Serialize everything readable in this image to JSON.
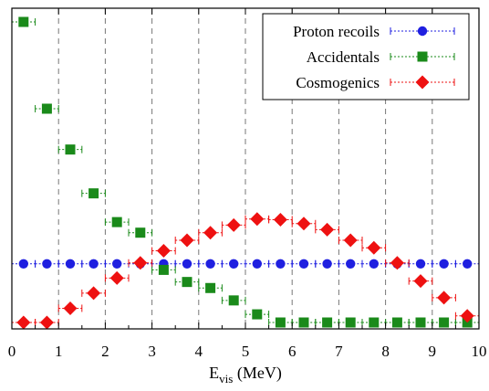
{
  "chart_data": {
    "type": "scatter",
    "xlabel": "E",
    "xlabel_sub": "vis",
    "xlabel_unit": " (MeV)",
    "ylabel": "",
    "xlim": [
      0,
      10
    ],
    "ylim": [
      0,
      1
    ],
    "grid": "vertical dashed",
    "legend_position": "top-right",
    "x_ticks": [
      "0",
      "1",
      "2",
      "3",
      "4",
      "5",
      "6",
      "7",
      "8",
      "9",
      "10"
    ],
    "series": [
      {
        "name": "Proton recoils",
        "marker": "circle",
        "color": "#1f1fe0",
        "x": [
          0.25,
          0.75,
          1.25,
          1.75,
          2.25,
          2.75,
          3.25,
          3.75,
          4.25,
          4.75,
          5.25,
          5.75,
          6.25,
          6.75,
          7.25,
          7.75,
          8.25,
          8.75,
          9.25,
          9.75
        ],
        "y": [
          0.197,
          0.197,
          0.197,
          0.197,
          0.197,
          0.197,
          0.197,
          0.197,
          0.197,
          0.197,
          0.197,
          0.197,
          0.197,
          0.197,
          0.197,
          0.197,
          0.197,
          0.197,
          0.197,
          0.197
        ]
      },
      {
        "name": "Accidentals",
        "marker": "square",
        "color": "#1a8a1a",
        "x": [
          0.25,
          0.75,
          1.25,
          1.75,
          2.25,
          2.75,
          3.25,
          3.75,
          4.25,
          4.75,
          5.25,
          5.75,
          6.25,
          6.75,
          7.25,
          7.75,
          8.25,
          8.75,
          9.25,
          9.75
        ],
        "y": [
          0.997,
          0.71,
          0.575,
          0.43,
          0.335,
          0.3,
          0.177,
          0.137,
          0.117,
          0.076,
          0.03,
          0.003,
          0.003,
          0.003,
          0.003,
          0.003,
          0.003,
          0.003,
          0.003,
          0.003
        ]
      },
      {
        "name": "Cosmogenics",
        "marker": "diamond",
        "color": "#ee1111",
        "x": [
          0.25,
          0.75,
          1.25,
          1.75,
          2.25,
          2.75,
          3.25,
          3.75,
          4.25,
          4.75,
          5.25,
          5.75,
          6.25,
          6.75,
          7.25,
          7.75,
          8.25,
          8.75,
          9.25,
          9.75
        ],
        "y": [
          0.003,
          0.003,
          0.05,
          0.1,
          0.15,
          0.2,
          0.24,
          0.275,
          0.3,
          0.325,
          0.345,
          0.343,
          0.33,
          0.31,
          0.275,
          0.25,
          0.2,
          0.14,
          0.085,
          0.025
        ]
      }
    ]
  }
}
